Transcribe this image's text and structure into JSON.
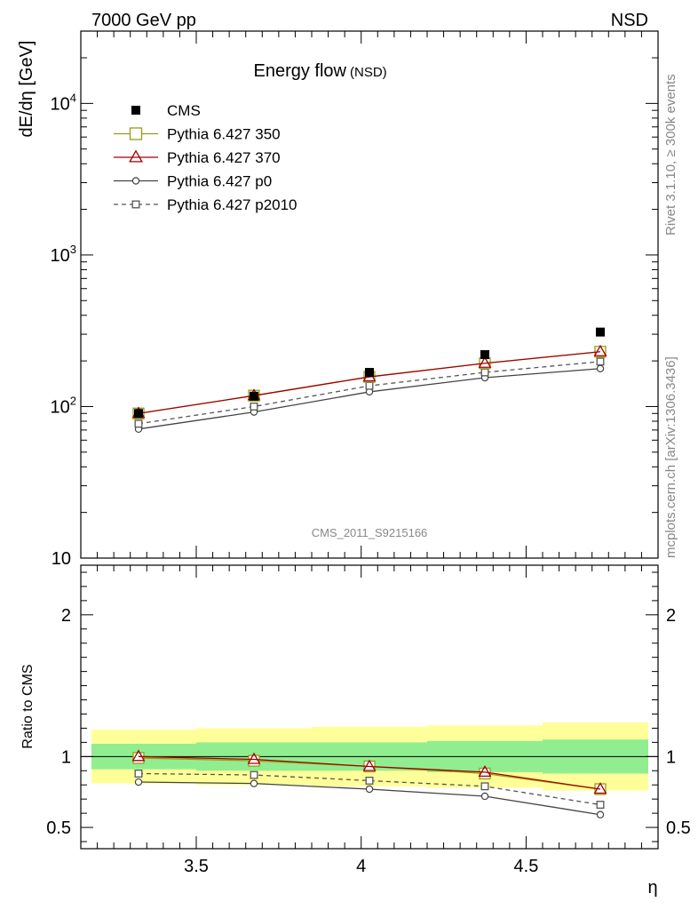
{
  "header": {
    "left": "7000 GeV pp",
    "right": "NSD"
  },
  "title": {
    "main": "Energy flow",
    "sub": "(NSD)"
  },
  "analysis_label": "CMS_2011_S9215166",
  "side_labels": {
    "rivet": "Rivet 3.1.10, ≥ 300k events",
    "mcplots": "mcplots.cern.ch [arXiv:1306.3436]"
  },
  "colors": {
    "cms": "#000000",
    "py350": "#9a9a1a",
    "py370": "#a00000",
    "p0": "#444444",
    "p2010": "#555555",
    "band_inner": "#90ee90",
    "band_outer": "#ffff99"
  },
  "chart_data": [
    {
      "type": "line",
      "yscale": "log",
      "xlabel": "",
      "ylabel": "dE/dη [GeV]",
      "xlim": [
        3.15,
        4.9
      ],
      "ylim": [
        10,
        30000
      ],
      "yticks": [
        {
          "v": 10,
          "base": "10",
          "exp": ""
        },
        {
          "v": 100,
          "base": "10",
          "exp": "2"
        },
        {
          "v": 1000,
          "base": "10",
          "exp": "3"
        },
        {
          "v": 10000,
          "base": "10",
          "exp": "4"
        }
      ],
      "x": [
        3.325,
        3.675,
        4.025,
        4.375,
        4.725
      ],
      "series": [
        {
          "name": "CMS",
          "style": "data",
          "values": [
            90,
            117,
            168,
            220,
            310
          ]
        },
        {
          "name": "Pythia 6.427 350",
          "style": "py350",
          "values": [
            90,
            118,
            157,
            193,
            230
          ]
        },
        {
          "name": "Pythia 6.427 370",
          "style": "py370",
          "values": [
            90,
            118,
            157,
            193,
            230
          ]
        },
        {
          "name": "Pythia 6.427 p0",
          "style": "p0",
          "values": [
            71,
            92,
            125,
            155,
            178
          ]
        },
        {
          "name": "Pythia 6.427 p2010",
          "style": "p2010",
          "values": [
            77,
            100,
            137,
            168,
            198
          ]
        }
      ]
    },
    {
      "type": "line",
      "xlabel": "η",
      "ylabel": "Ratio to CMS",
      "xlim": [
        3.15,
        4.9
      ],
      "ylim": [
        0.35,
        2.35
      ],
      "xticks": [
        3.5,
        4,
        4.5
      ],
      "xtick_labels": [
        "3.5",
        "4",
        "4.5"
      ],
      "yticks": [
        0.5,
        1,
        2
      ],
      "ytick_labels": [
        "0.5",
        "1",
        "2"
      ],
      "x": [
        3.325,
        3.675,
        4.025,
        4.375,
        4.725
      ],
      "bands": {
        "edges": [
          3.15,
          3.5,
          3.85,
          4.2,
          4.55,
          4.9
        ],
        "inner": [
          [
            0.91,
            1.09
          ],
          [
            0.9,
            1.1
          ],
          [
            0.9,
            1.1
          ],
          [
            0.89,
            1.11
          ],
          [
            0.88,
            1.12
          ]
        ],
        "outer": [
          [
            0.81,
            1.19
          ],
          [
            0.8,
            1.2
          ],
          [
            0.79,
            1.21
          ],
          [
            0.78,
            1.22
          ],
          [
            0.76,
            1.24
          ]
        ]
      },
      "series": [
        {
          "name": "Pythia 6.427 350",
          "style": "py350",
          "values": [
            0.99,
            0.97,
            0.93,
            0.88,
            0.77
          ]
        },
        {
          "name": "Pythia 6.427 370",
          "style": "py370",
          "values": [
            1.0,
            0.98,
            0.93,
            0.89,
            0.77
          ]
        },
        {
          "name": "Pythia 6.427 p0",
          "style": "p0",
          "values": [
            0.82,
            0.81,
            0.77,
            0.72,
            0.59
          ]
        },
        {
          "name": "Pythia 6.427 p2010",
          "style": "p2010",
          "values": [
            0.88,
            0.87,
            0.83,
            0.79,
            0.66
          ]
        }
      ]
    }
  ]
}
